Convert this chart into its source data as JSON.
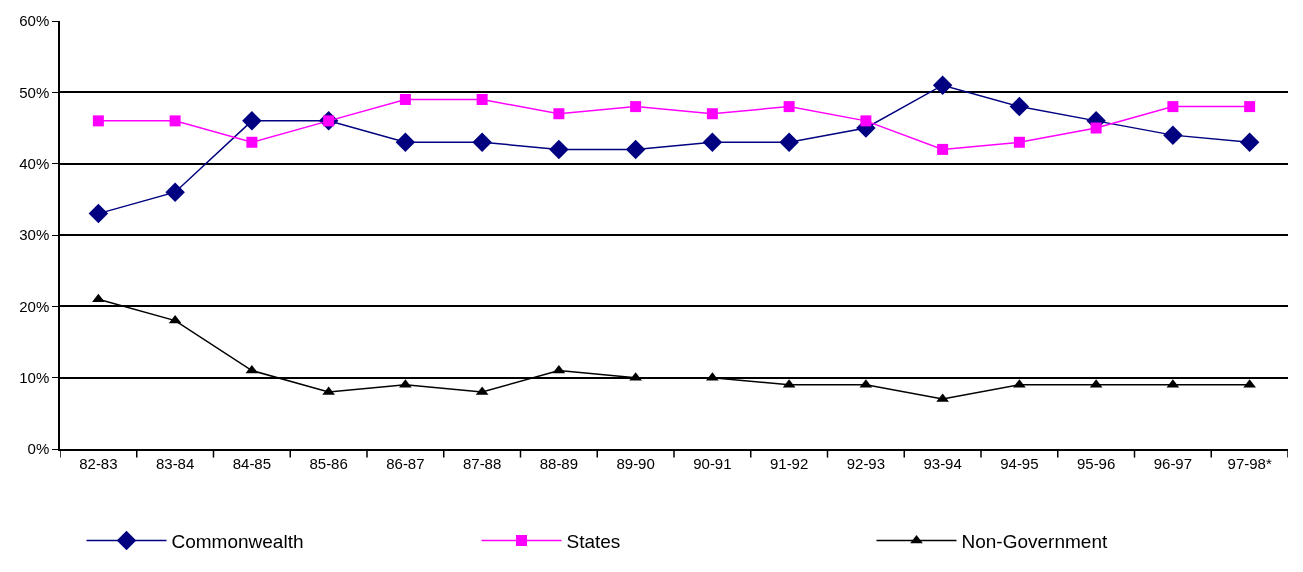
{
  "chart_data": {
    "type": "line",
    "categories": [
      "82-83",
      "83-84",
      "84-85",
      "85-86",
      "86-87",
      "87-88",
      "88-89",
      "89-90",
      "90-91",
      "91-92",
      "92-93",
      "93-94",
      "94-95",
      "95-96",
      "96-97",
      "97-98*"
    ],
    "series": [
      {
        "name": "Commonwealth",
        "color": "#000080",
        "marker": "diamond",
        "values": [
          33,
          36,
          46,
          46,
          43,
          43,
          42,
          42,
          43,
          43,
          45,
          51,
          48,
          46,
          44,
          43
        ]
      },
      {
        "name": "States",
        "color": "#ff00ff",
        "marker": "square",
        "values": [
          46,
          46,
          43,
          46,
          49,
          49,
          47,
          48,
          47,
          48,
          46,
          42,
          43,
          45,
          48,
          48
        ]
      },
      {
        "name": "Non-Government",
        "color": "#000000",
        "marker": "triangle",
        "values": [
          21,
          18,
          11,
          8,
          9,
          8,
          11,
          10,
          10,
          9,
          9,
          7,
          9,
          9,
          9,
          9
        ]
      }
    ],
    "ylim": [
      0,
      60
    ],
    "yticks": [
      {
        "value": 0,
        "label": "0%"
      },
      {
        "value": 10,
        "label": "10%"
      },
      {
        "value": 20,
        "label": "20%"
      },
      {
        "value": 30,
        "label": "30%"
      },
      {
        "value": 40,
        "label": "40%"
      },
      {
        "value": 50,
        "label": "50%"
      },
      {
        "value": 60,
        "label": "60%"
      }
    ],
    "grid": "y",
    "legend": "bottom",
    "line_style": "solid"
  }
}
